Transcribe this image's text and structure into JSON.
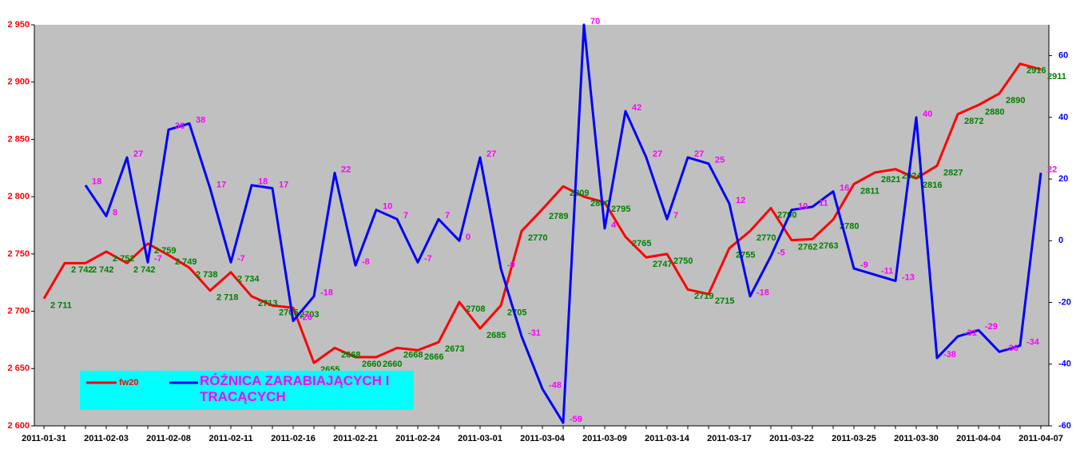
{
  "chart_data": {
    "type": "line",
    "categories": [
      "2011-01-31",
      null,
      null,
      "2011-02-03",
      null,
      null,
      "2011-02-08",
      null,
      null,
      "2011-02-11",
      null,
      null,
      "2011-02-16",
      null,
      null,
      "2011-02-21",
      null,
      null,
      "2011-02-24",
      null,
      null,
      "2011-03-01",
      null,
      null,
      "2011-03-04",
      null,
      null,
      "2011-03-09",
      null,
      null,
      "2011-03-14",
      null,
      null,
      "2011-03-17",
      null,
      null,
      "2011-03-22",
      null,
      null,
      "2011-03-25",
      null,
      null,
      "2011-03-30",
      null,
      null,
      "2011-04-04",
      null,
      null,
      "2011-04-07"
    ],
    "series": [
      {
        "name": "fw20",
        "color": "#ff0000",
        "label_color": "#008000",
        "values": [
          2711,
          2742,
          2742,
          2752,
          2742,
          2759,
          2749,
          2738,
          2718,
          2734,
          2713,
          2705,
          2703,
          2655,
          2668,
          2660,
          2660,
          2668,
          2666,
          2673,
          2708,
          2685,
          2705,
          2770,
          2789,
          2809,
          2800,
          2795,
          2765,
          2747,
          2750,
          2719,
          2715,
          2755,
          2770,
          2790,
          2762,
          2763,
          2780,
          2811,
          2821,
          2824,
          2816,
          2827,
          2872,
          2880,
          2890,
          2916,
          2911
        ],
        "value_labels": [
          "2 711",
          "2 742",
          "2 742",
          "2 752",
          "2 742",
          "2 759",
          "2 749",
          "2 738",
          "2 718",
          "2 734",
          "2713",
          "2705",
          "2703",
          "2655",
          "2668",
          "2660",
          "2660",
          "2668",
          "2666",
          "2673",
          "2708",
          "2685",
          "2705",
          "2770",
          "2789",
          "2809",
          "2800",
          "2795",
          "2765",
          "2747",
          "2750",
          "2719",
          "2715",
          "2755",
          "2770",
          "2790",
          "2762",
          "2763",
          "2780",
          "2811",
          "2821",
          "2824",
          "2816",
          "2827",
          "2872",
          "2880",
          "2890",
          "2916",
          "2911"
        ]
      },
      {
        "name": "RÓŻNICA ZARABIAJĄCYCH I TRACĄCYCH",
        "color": "#0000ff",
        "label_color": "#ff00ff",
        "axis": "y2",
        "values": [
          null,
          null,
          18,
          8,
          27,
          -7,
          36,
          38,
          17,
          -7,
          18,
          17,
          -26,
          -18,
          22,
          -8,
          10,
          7,
          -7,
          7,
          0,
          27,
          -9,
          -31,
          -48,
          -59,
          70,
          4,
          42,
          27,
          7,
          27,
          25,
          12,
          -18,
          -5,
          10,
          11,
          16,
          -9,
          -11,
          -13,
          40,
          -38,
          -31,
          -29,
          -36,
          -34,
          22
        ]
      }
    ],
    "ylim": [
      2600,
      2950
    ],
    "yticks": [
      {
        "value": 2600,
        "label": "2 600"
      },
      {
        "value": 2650,
        "label": "2 650"
      },
      {
        "value": 2700,
        "label": "2 700"
      },
      {
        "value": 2750,
        "label": "2 750"
      },
      {
        "value": 2800,
        "label": "2 800"
      },
      {
        "value": 2850,
        "label": "2 850"
      },
      {
        "value": 2900,
        "label": "2 900"
      },
      {
        "value": 2950,
        "label": "2 950"
      }
    ],
    "y2lim": [
      -60,
      70
    ],
    "y2ticks": [
      -60,
      -40,
      -20,
      0,
      20,
      40,
      60
    ],
    "background": "#c0c0c0",
    "legend_color": "#00ffff"
  }
}
